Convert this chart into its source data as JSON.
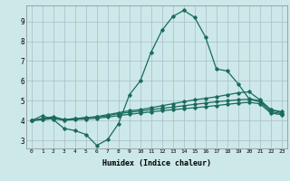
{
  "xlabel": "Humidex (Indice chaleur)",
  "bg_color": "#cce8e8",
  "line_color": "#1a6b5a",
  "xlim": [
    -0.5,
    23.5
  ],
  "ylim": [
    2.6,
    9.8
  ],
  "yticks": [
    3,
    4,
    5,
    6,
    7,
    8,
    9
  ],
  "xticks": [
    0,
    1,
    2,
    3,
    4,
    5,
    6,
    7,
    8,
    9,
    10,
    11,
    12,
    13,
    14,
    15,
    16,
    17,
    18,
    19,
    20,
    21,
    22,
    23
  ],
  "line1_x": [
    0,
    1,
    2,
    3,
    4,
    5,
    6,
    7,
    8,
    9,
    10,
    11,
    12,
    13,
    14,
    15,
    16,
    17,
    18,
    19,
    20,
    21,
    22,
    23
  ],
  "line1_y": [
    4.0,
    4.25,
    4.05,
    3.6,
    3.5,
    3.3,
    2.75,
    3.05,
    3.85,
    5.3,
    6.0,
    7.45,
    8.55,
    9.25,
    9.55,
    9.2,
    8.2,
    6.6,
    6.5,
    5.85,
    5.1,
    5.0,
    4.55,
    4.45
  ],
  "line2_x": [
    0,
    1,
    2,
    3,
    4,
    5,
    6,
    7,
    8,
    9,
    10,
    11,
    12,
    13,
    14,
    15,
    16,
    17,
    18,
    19,
    20,
    21,
    22,
    23
  ],
  "line2_y": [
    4.0,
    4.1,
    4.2,
    4.05,
    4.1,
    4.15,
    4.2,
    4.3,
    4.4,
    4.5,
    4.55,
    4.65,
    4.75,
    4.85,
    4.95,
    5.05,
    5.12,
    5.2,
    5.3,
    5.4,
    5.45,
    5.05,
    4.55,
    4.4
  ],
  "line3_x": [
    0,
    1,
    2,
    3,
    4,
    5,
    6,
    7,
    8,
    9,
    10,
    11,
    12,
    13,
    14,
    15,
    16,
    17,
    18,
    19,
    20,
    21,
    22,
    23
  ],
  "line3_y": [
    4.0,
    4.08,
    4.15,
    4.05,
    4.1,
    4.15,
    4.18,
    4.25,
    4.35,
    4.42,
    4.48,
    4.55,
    4.62,
    4.68,
    4.75,
    4.82,
    4.88,
    4.95,
    5.0,
    5.05,
    5.08,
    4.95,
    4.45,
    4.35
  ],
  "line4_x": [
    0,
    1,
    2,
    3,
    4,
    5,
    6,
    7,
    8,
    9,
    10,
    11,
    12,
    13,
    14,
    15,
    16,
    17,
    18,
    19,
    20,
    21,
    22,
    23
  ],
  "line4_y": [
    4.0,
    4.05,
    4.1,
    4.02,
    4.05,
    4.08,
    4.12,
    4.18,
    4.25,
    4.32,
    4.38,
    4.44,
    4.5,
    4.55,
    4.6,
    4.65,
    4.7,
    4.76,
    4.82,
    4.88,
    4.92,
    4.85,
    4.38,
    4.3
  ]
}
